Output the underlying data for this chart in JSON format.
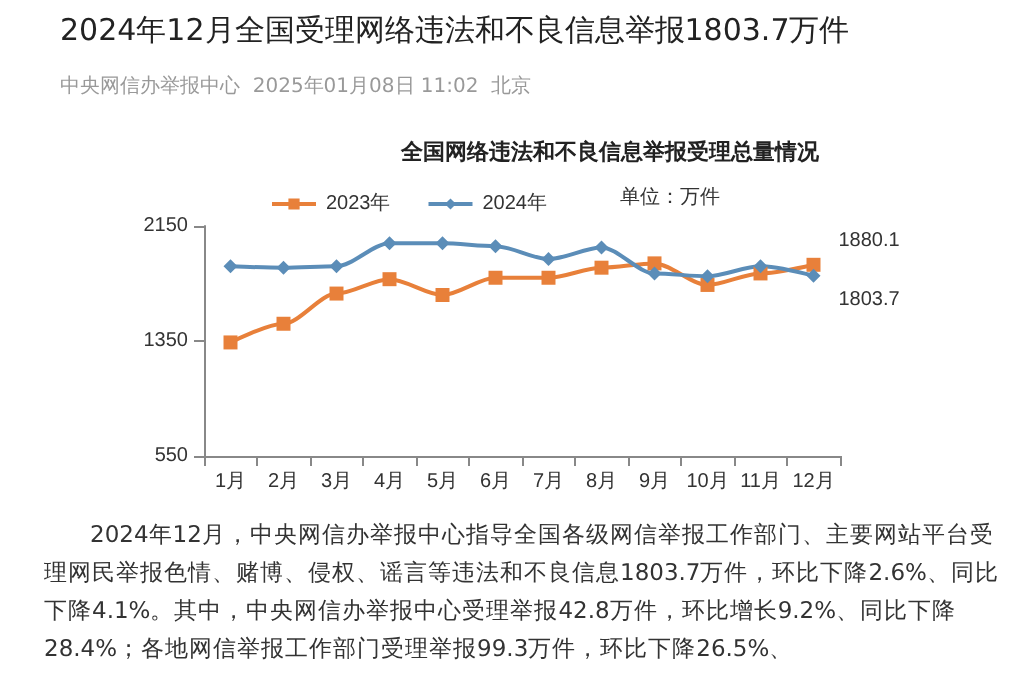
{
  "chart_data": {
    "type": "line",
    "title": "2024年12月全国受理网络违法和不良信息举报1803.7万件",
    "subtitle": "中央网信办举报中心  2025年01月08日 11:02  北京",
    "ylabel": "单位：万件",
    "annotations": [
      "全国网络违法和不良信息举报受理总量情况",
      "2024年12月，中央网信办举报中心指导全国各级网信举报工作部门、主要网站平台受理网民举报色情、赌博、侵权、谣言等违法和不良信息1803.7万件，环比下降2.6%、同比下降4.1%。其中，中央网信办举报中心受理举报42.8万件，环比增长9.2%、同比下降28.4%；各地网信举报工作部门受理举报99.3万件，环比下降26.5%、"
    ],
    "categories": [
      "1月",
      "2月",
      "3月",
      "4月",
      "5月",
      "6月",
      "7月",
      "8月",
      "9月",
      "10月",
      "11月",
      "12月"
    ],
    "series": [
      {
        "name": "2023年",
        "color": "#e8803a",
        "marker": "square",
        "values": [
          1340,
          1470,
          1680,
          1780,
          1670,
          1790,
          1790,
          1860,
          1890,
          1740,
          1820,
          1880.1
        ],
        "value_labels": [
          null,
          null,
          null,
          null,
          null,
          null,
          null,
          null,
          null,
          null,
          null,
          "1880.1"
        ]
      },
      {
        "name": "2024年",
        "color": "#5b8db8",
        "marker": "diamond",
        "values": [
          1870,
          1860,
          1870,
          2030,
          2030,
          2010,
          1920,
          2000,
          1820,
          1800,
          1870,
          1803.7
        ],
        "value_labels": [
          null,
          null,
          null,
          null,
          null,
          null,
          null,
          null,
          null,
          null,
          null,
          "1803.7"
        ]
      }
    ],
    "ylim": [
      550,
      2150
    ],
    "yticks": [
      550,
      1350,
      2150
    ],
    "legend": "top left",
    "grid": false
  }
}
